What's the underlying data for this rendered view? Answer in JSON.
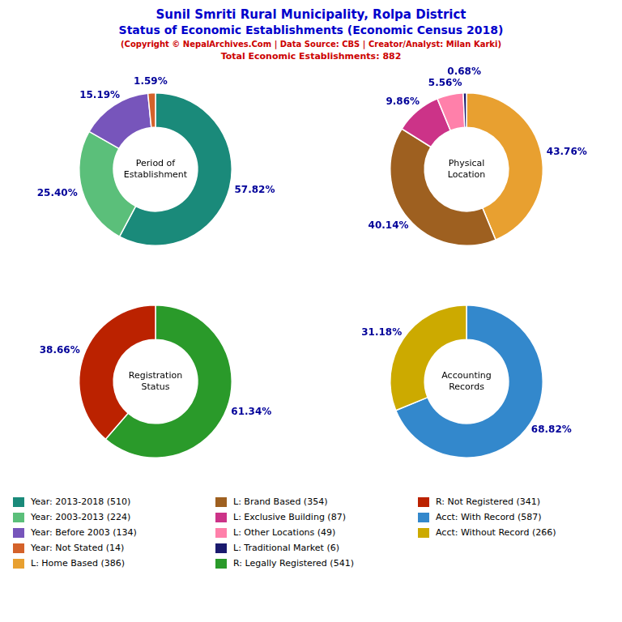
{
  "title": [
    "Sunil Smriti Rural Municipality, Rolpa District",
    "Status of Economic Establishments (Economic Census 2018)"
  ],
  "subtitle": [
    "(Copyright © NepalArchives.Com | Data Source: CBS | Creator/Analyst: Milan Karki)",
    "Total Economic Establishments: 882"
  ],
  "chart_data": [
    {
      "type": "doughnut",
      "title": "Period of\nEstablishment",
      "categories": [
        "Year: 2013-2018 (510)",
        "Year: 2003-2013 (224)",
        "Year: Before 2003 (134)",
        "Year: Not Stated (14)"
      ],
      "values": [
        57.82,
        25.4,
        15.19,
        1.59
      ],
      "value_labels": [
        "57.82%",
        "25.40%",
        "15.19%",
        "1.59%"
      ],
      "colors": [
        "#1a8a7a",
        "#5bbf7a",
        "#7755bb",
        "#d4622a"
      ],
      "data_labels": true
    },
    {
      "type": "doughnut",
      "title": "Physical\nLocation",
      "categories": [
        "L: Home Based (386)",
        "L: Brand Based (354)",
        "L: Exclusive Building (87)",
        "L: Other Locations (49)",
        "L: Traditional Market (6)"
      ],
      "values": [
        43.76,
        40.14,
        9.86,
        5.56,
        0.68
      ],
      "value_labels": [
        "43.76%",
        "40.14%",
        "9.86%",
        "5.56%",
        "0.68%"
      ],
      "colors": [
        "#e8a030",
        "#9e6020",
        "#cc3388",
        "#ff80aa",
        "#1a1a6e"
      ],
      "data_labels": true
    },
    {
      "type": "doughnut",
      "title": "Registration\nStatus",
      "categories": [
        "R: Legally Registered (541)",
        "R: Not Registered (341)"
      ],
      "values": [
        61.34,
        38.66
      ],
      "value_labels": [
        "61.34%",
        "38.66%"
      ],
      "colors": [
        "#2a9a2a",
        "#bb2200"
      ],
      "data_labels": true
    },
    {
      "type": "doughnut",
      "title": "Accounting\nRecords",
      "categories": [
        "Acct: With Record (587)",
        "Acct: Without Record (266)"
      ],
      "values": [
        68.82,
        31.18
      ],
      "value_labels": [
        "68.82%",
        "31.18%"
      ],
      "colors": [
        "#3388cc",
        "#ccaa00"
      ],
      "data_labels": true
    }
  ]
}
